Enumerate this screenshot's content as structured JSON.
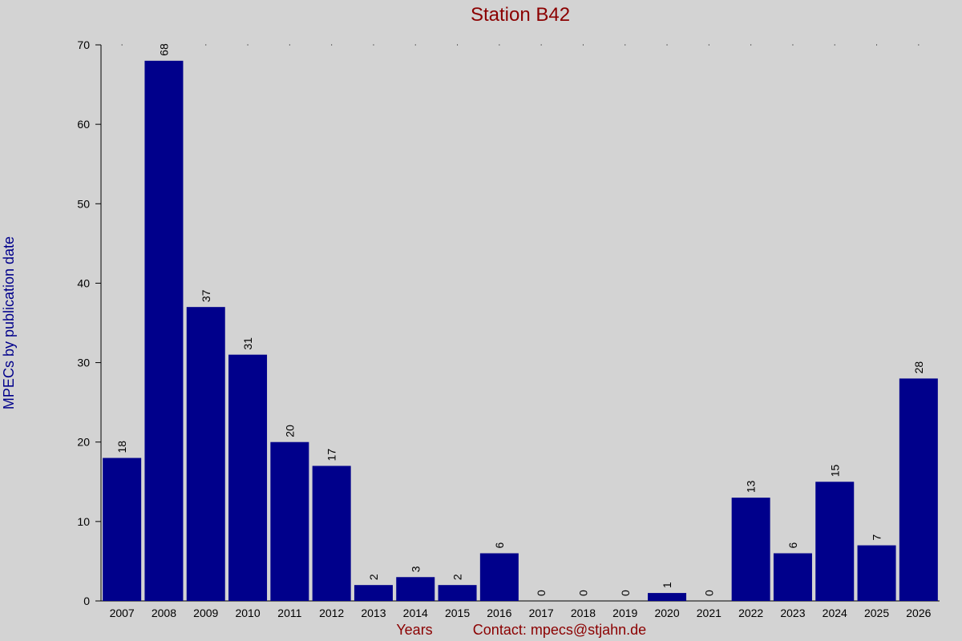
{
  "chart_data": {
    "type": "bar",
    "title": "Station B42",
    "ylabel": "MPECs by publication date",
    "xlabel": "Years",
    "contact": "Contact: mpecs@stjahn.de",
    "categories": [
      "2007",
      "2008",
      "2009",
      "2010",
      "2011",
      "2012",
      "2013",
      "2014",
      "2015",
      "2016",
      "2017",
      "2018",
      "2019",
      "2020",
      "2021",
      "2022",
      "2023",
      "2024",
      "2025",
      "2026"
    ],
    "values": [
      18,
      68,
      37,
      31,
      20,
      17,
      2,
      3,
      2,
      6,
      0,
      0,
      0,
      1,
      0,
      13,
      6,
      15,
      7,
      28
    ],
    "value_labels": [
      "18",
      "68",
      "37",
      "31",
      "20",
      "17",
      "2",
      "3",
      "2",
      "6",
      "0",
      "0",
      "0",
      "1",
      "0",
      "13",
      "6",
      "15",
      "7",
      "28"
    ],
    "ylim": [
      0,
      70
    ],
    "yticks": [
      0,
      10,
      20,
      30,
      40,
      50,
      60,
      70
    ],
    "ytick_labels": [
      "0",
      "10",
      "20",
      "30",
      "40",
      "50",
      "60",
      "70"
    ],
    "grid": "dotted-top",
    "legend": "none",
    "colors": {
      "bar": "#00008b",
      "title": "#8b0000",
      "ylabel": "#00008b",
      "footer": "#8b0000",
      "background": "#d3d3d3"
    }
  }
}
